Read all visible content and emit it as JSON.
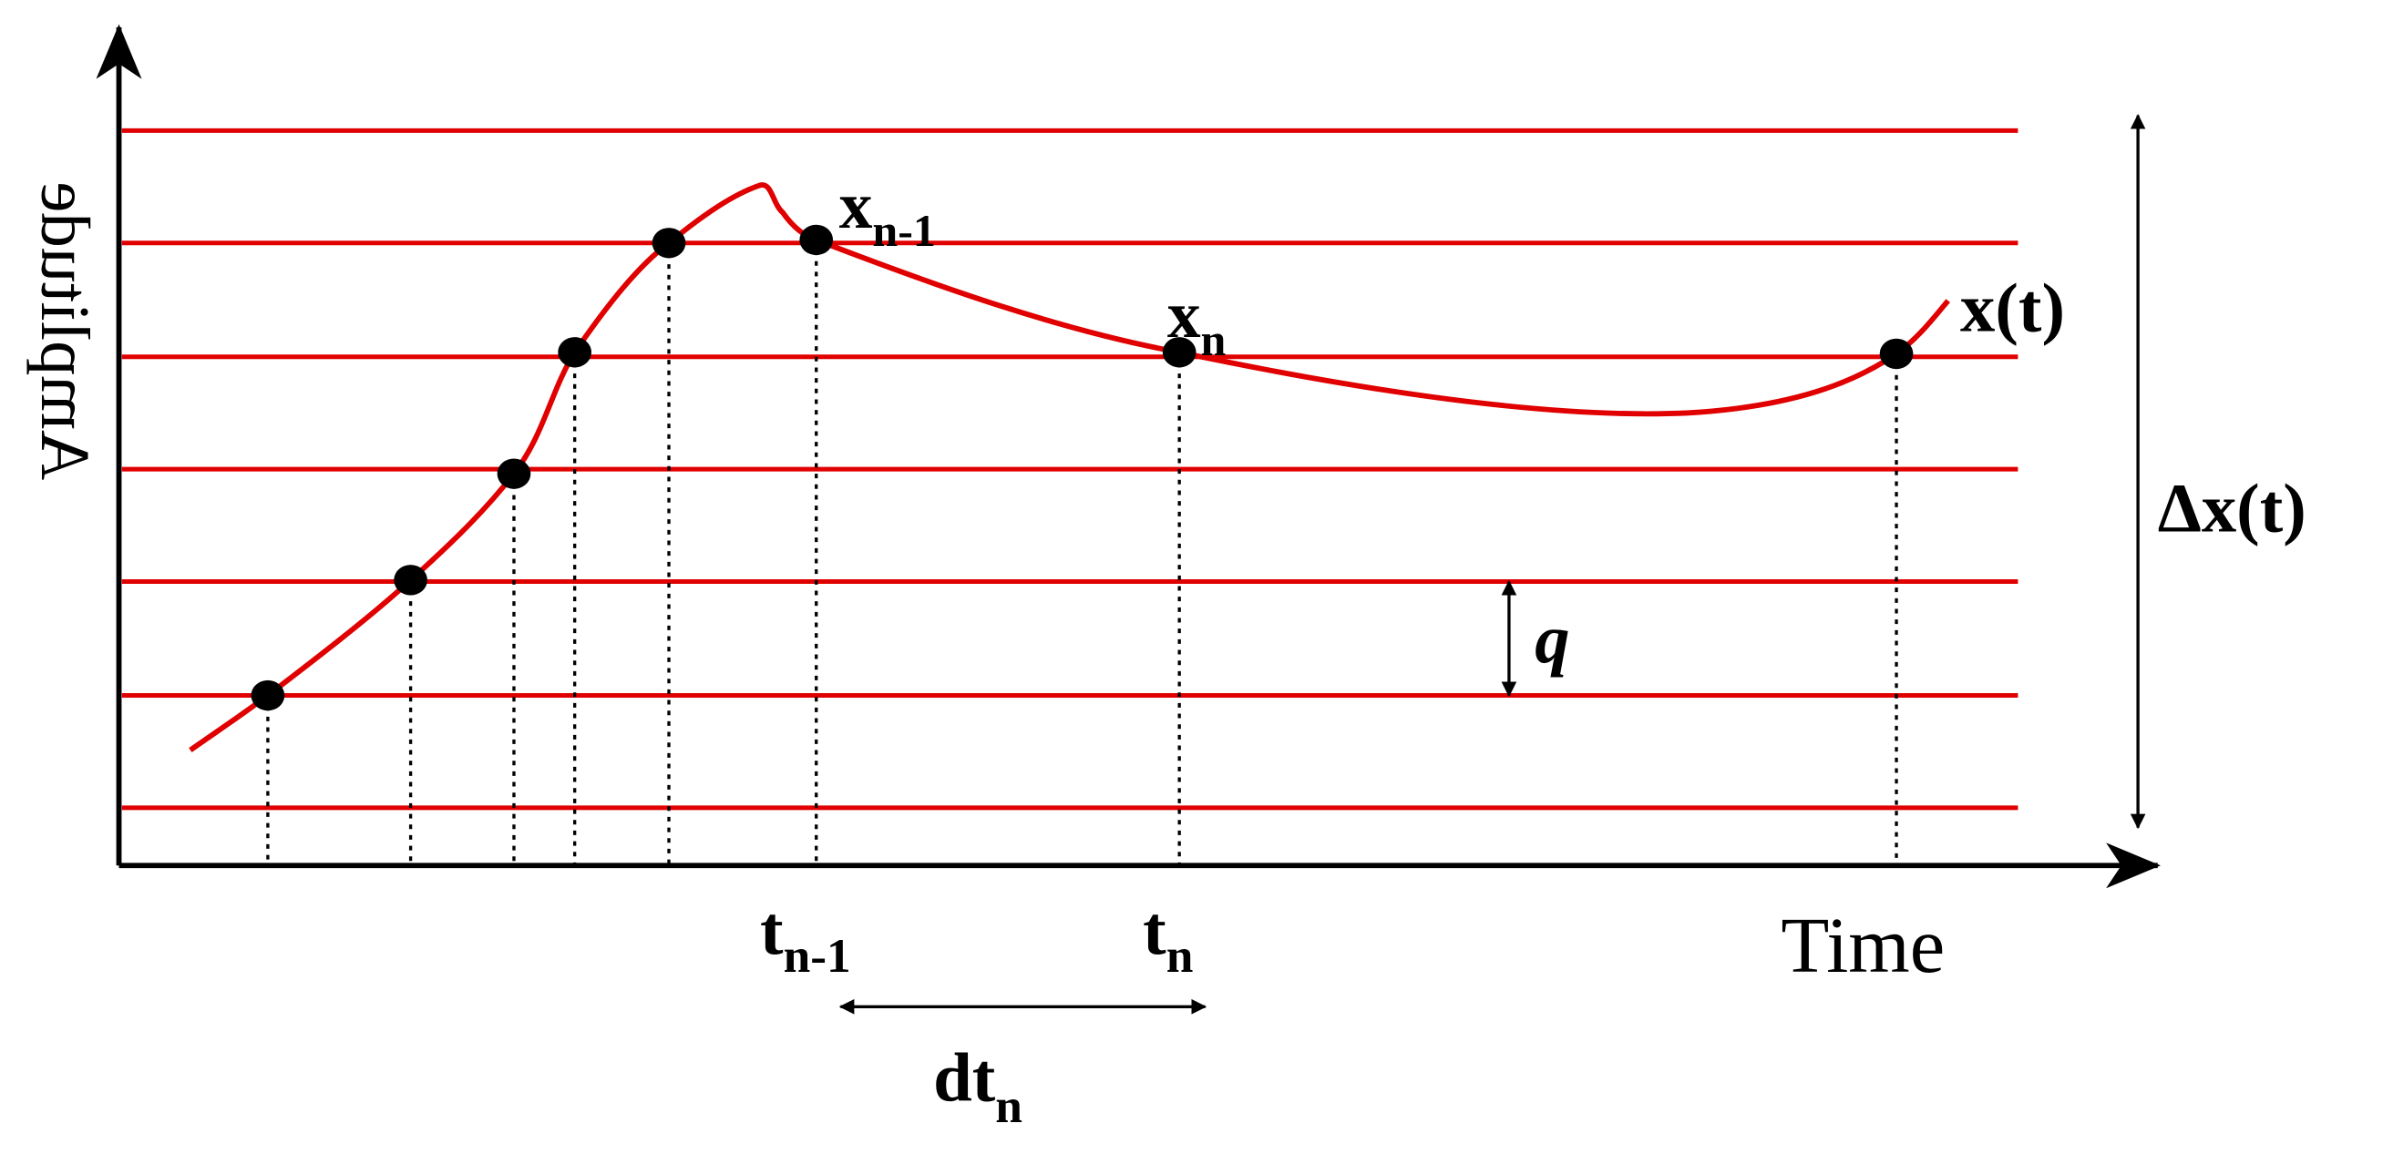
{
  "axes": {
    "y_label": "Amplitude",
    "x_label": "Time"
  },
  "signal_label": "x(t)",
  "range_label": "Δx(t)",
  "level_step_label": "q",
  "points": [
    {
      "base": "x",
      "sub": "n-1"
    },
    {
      "base": "x",
      "sub": "n"
    }
  ],
  "times": [
    {
      "base": "t",
      "sub": "n-1"
    },
    {
      "base": "t",
      "sub": "n"
    }
  ],
  "interval_label": {
    "base": "dt",
    "sub": "n"
  }
}
